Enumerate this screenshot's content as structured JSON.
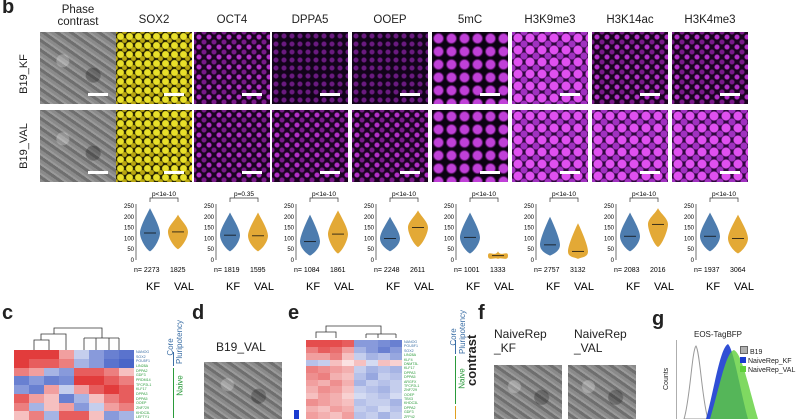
{
  "panel_labels": {
    "b": "b",
    "c": "c",
    "d": "d",
    "e": "e",
    "f": "f",
    "g": "g"
  },
  "column_headers": [
    "Phase\ncontrast",
    "SOX2",
    "OCT4",
    "DPPA5",
    "OOEP",
    "5mC",
    "H3K9me3",
    "H3K14ac",
    "H3K4me3"
  ],
  "row_labels": [
    "B19_KF",
    "B19_VAL"
  ],
  "colors": {
    "KF": "#3a6ea5",
    "VAL": "#e0a020",
    "heat_high": "#e23c3c",
    "heat_low": "#4a66c8",
    "naive_green": "#2a9a3a",
    "gfp": "#5fd03a",
    "bfp": "#1a3cd0",
    "gray_hist": "#b0b0b0"
  },
  "violin_panels": [
    {
      "pval": "p<1e-10",
      "ymax": 250,
      "ticks": [
        "250",
        "200",
        "150",
        "100",
        "50",
        "0"
      ],
      "n_kf": "n= 2273",
      "n_val": "1825",
      "kf_median": 125,
      "val_median": 130,
      "kf_spread": [
        40,
        240
      ],
      "val_spread": [
        50,
        210
      ]
    },
    {
      "pval": "p=0.35",
      "ymax": 250,
      "ticks": [
        "250",
        "200",
        "150",
        "100",
        "50",
        "0"
      ],
      "n_kf": "n= 1819",
      "n_val": "1595",
      "kf_median": 115,
      "val_median": 112,
      "kf_spread": [
        40,
        220
      ],
      "val_spread": [
        40,
        220
      ]
    },
    {
      "pval": "p<1e-10",
      "ymax": 250,
      "ticks": [
        "250",
        "200",
        "150",
        "100",
        "50",
        "0"
      ],
      "n_kf": "n= 1084",
      "n_val": "1861",
      "kf_median": 85,
      "val_median": 120,
      "kf_spread": [
        20,
        210
      ],
      "val_spread": [
        30,
        230
      ]
    },
    {
      "pval": "p<1e-10",
      "ymax": 250,
      "ticks": [
        "250",
        "200",
        "150",
        "100",
        "50",
        "0"
      ],
      "n_kf": "n= 2248",
      "n_val": "2611",
      "kf_median": 100,
      "val_median": 150,
      "kf_spread": [
        40,
        200
      ],
      "val_spread": [
        60,
        230
      ]
    },
    {
      "pval": "p<1e-10",
      "ymax": 250,
      "ticks": [
        "250",
        "200",
        "150",
        "100",
        "50",
        "0"
      ],
      "n_kf": "n= 1001",
      "n_val": "1333",
      "kf_median": 105,
      "val_median": 20,
      "kf_spread": [
        30,
        220
      ],
      "val_spread": [
        5,
        40
      ]
    },
    {
      "pval": "p<1e-10",
      "ymax": 250,
      "ticks": [
        "250",
        "200",
        "150",
        "100",
        "50",
        "0"
      ],
      "n_kf": "n= 2757",
      "n_val": "3132",
      "kf_median": 70,
      "val_median": 40,
      "kf_spread": [
        20,
        200
      ],
      "val_spread": [
        5,
        170
      ]
    },
    {
      "pval": "p<1e-10",
      "ymax": 250,
      "ticks": [
        "250",
        "200",
        "150",
        "100",
        "50",
        "0"
      ],
      "n_kf": "n= 2083",
      "n_val": "2016",
      "kf_median": 110,
      "val_median": 165,
      "kf_spread": [
        40,
        220
      ],
      "val_spread": [
        60,
        240
      ]
    },
    {
      "pval": "p<1e-10",
      "ymax": 250,
      "ticks": [
        "250",
        "200",
        "150",
        "100",
        "50",
        "0"
      ],
      "n_kf": "n= 1937",
      "n_val": "3064",
      "kf_median": 110,
      "val_median": 100,
      "kf_spread": [
        40,
        220
      ],
      "val_spread": [
        30,
        210
      ]
    }
  ],
  "violin_xlabels": [
    "KF",
    "VAL"
  ],
  "panel_c": {
    "genes": [
      "NANOG",
      "SOX2",
      "POU5F1",
      "LIN28A",
      "DPPA2",
      "GDF3",
      "PRDM14",
      "TFCP2L1",
      "KLF17",
      "DPPA3",
      "DPPA5",
      "OOEP",
      "ZNF729",
      "KHDC3L",
      "LEFTY1"
    ],
    "groups": [
      "Core\nPluripotency",
      "Naive"
    ],
    "matrix": [
      [
        1,
        1,
        1,
        0.4,
        -0.2,
        -0.6,
        -0.8,
        -0.9
      ],
      [
        1,
        0.8,
        0.8,
        0.6,
        -0.4,
        -0.6,
        -0.9,
        -1
      ],
      [
        0.6,
        0.4,
        -0.4,
        -0.6,
        0.8,
        0.8,
        0.6,
        0.2
      ],
      [
        -0.8,
        -0.6,
        -0.8,
        -0.7,
        1,
        1,
        0.8,
        0.6
      ],
      [
        -0.6,
        -0.8,
        0.4,
        -0.2,
        0.4,
        0.8,
        1,
        0.8
      ],
      [
        0.8,
        0.4,
        0.2,
        -0.8,
        -0.4,
        0.2,
        0.6,
        0.8
      ],
      [
        0.6,
        -0.4,
        0.2,
        0.4,
        -0.6,
        -0.2,
        0.4,
        0.6
      ],
      [
        0.2,
        0.6,
        -0.4,
        0.8,
        0.8,
        0.2,
        -0.6,
        -0.4
      ]
    ]
  },
  "panel_d": {
    "title": "B19_VAL"
  },
  "panel_e": {
    "genes": [
      "NANOG",
      "POU5F1",
      "SOX2",
      "LIN28A",
      "KLF4",
      "DNMT3L",
      "KLF17",
      "DPPA3",
      "DPPA5",
      "ARGFX",
      "TFCP2L1",
      "ZNF729",
      "OOEP",
      "TBX3",
      "KHDC3L",
      "DPPA2",
      "GDF3",
      "ZFP42"
    ],
    "groups": [
      "Core\nPluripotency",
      "Naive"
    ],
    "matrix": [
      [
        0.9,
        0.9,
        0.9,
        0.8,
        -0.6,
        -0.6,
        -0.7,
        -0.8
      ],
      [
        0.6,
        0.8,
        0.7,
        0.4,
        -0.4,
        -0.6,
        -0.8,
        -0.6
      ],
      [
        0.4,
        0.4,
        0.6,
        0.2,
        -0.2,
        -0.4,
        -0.3,
        -0.5
      ],
      [
        -0.3,
        -0.2,
        0.2,
        0,
        0.2,
        -0.1,
        0.2,
        0.1
      ],
      [
        0.6,
        0.5,
        0.4,
        0.3,
        -0.2,
        -0.4,
        -0.3,
        -0.4
      ],
      [
        0.5,
        0.6,
        0.3,
        0.2,
        -0.3,
        -0.5,
        -0.2,
        -0.3
      ],
      [
        0.4,
        0.3,
        0.5,
        0.3,
        -0.4,
        -0.2,
        -0.3,
        -0.2
      ],
      [
        0.3,
        0.5,
        0.4,
        0.2,
        -0.2,
        -0.3,
        -0.4,
        -0.2
      ],
      [
        0.2,
        0.4,
        0.3,
        0.1,
        -0.1,
        -0.2,
        -0.3,
        -0.1
      ],
      [
        0.5,
        0.4,
        0.3,
        0.2,
        -0.3,
        -0.2,
        -0.2,
        -0.4
      ],
      [
        0.3,
        0.2,
        0.4,
        0.3,
        -0.2,
        -0.3,
        -0.1,
        -0.3
      ],
      [
        0.4,
        0.3,
        0.2,
        0.4,
        -0.3,
        -0.2,
        -0.4,
        -0.2
      ]
    ]
  },
  "panel_f": {
    "row_label": "contrast",
    "col1": "NaiveRep\n_KF",
    "col2": "NaiveRep\n_VAL"
  },
  "panel_g": {
    "title": "EOS-TagBFP",
    "ylabel": "Counts",
    "legend": [
      "B19",
      "NaiveRep_KF",
      "NaiveRep_VAL"
    ]
  }
}
